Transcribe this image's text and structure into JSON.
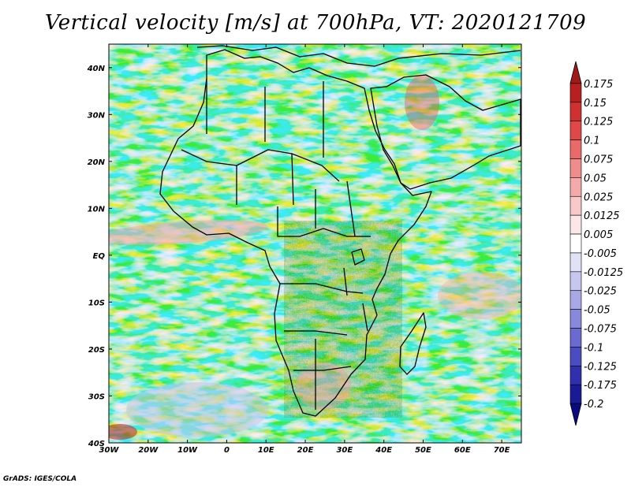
{
  "title": "Vertical velocity [m/s] at 700hPa, VT: 2020121709",
  "credit": "GrADS: IGES/COLA",
  "map": {
    "region": "Africa",
    "field": "vertical velocity",
    "level": "700hPa",
    "lon_range": [
      -30,
      75
    ],
    "lat_range": [
      -40,
      45
    ],
    "lon_ticks": [
      {
        "value": -30,
        "label": "30W"
      },
      {
        "value": -20,
        "label": "20W"
      },
      {
        "value": -10,
        "label": "10W"
      },
      {
        "value": 0,
        "label": "0"
      },
      {
        "value": 10,
        "label": "10E"
      },
      {
        "value": 20,
        "label": "20E"
      },
      {
        "value": 30,
        "label": "30E"
      },
      {
        "value": 40,
        "label": "40E"
      },
      {
        "value": 50,
        "label": "50E"
      },
      {
        "value": 60,
        "label": "60E"
      },
      {
        "value": 70,
        "label": "70E"
      }
    ],
    "lat_ticks": [
      {
        "value": 40,
        "label": "40N"
      },
      {
        "value": 30,
        "label": "30N"
      },
      {
        "value": 20,
        "label": "20N"
      },
      {
        "value": 10,
        "label": "10N"
      },
      {
        "value": 0,
        "label": "EQ"
      },
      {
        "value": -10,
        "label": "10S"
      },
      {
        "value": -20,
        "label": "20S"
      },
      {
        "value": -30,
        "label": "30S"
      },
      {
        "value": -40,
        "label": "40S"
      }
    ]
  },
  "colorbar": {
    "levels": [
      "0.175",
      "0.15",
      "0.125",
      "0.1",
      "0.075",
      "0.05",
      "0.025",
      "0.0125",
      "0.005",
      "-0.005",
      "-0.0125",
      "-0.025",
      "-0.05",
      "-0.075",
      "-0.1",
      "-0.125",
      "-0.175",
      "-0.2"
    ],
    "colors": [
      "#a01a1a",
      "#b82020",
      "#cf3030",
      "#e04848",
      "#ea6a6a",
      "#f08c8c",
      "#f5aaaa",
      "#f9c8c8",
      "#fde6e6",
      "#ffffff",
      "#e2e2f6",
      "#c6c6ef",
      "#a8a8e6",
      "#8888dc",
      "#6a6ad0",
      "#4c4cc2",
      "#3030ae",
      "#1a1a96",
      "#0a0a80"
    ]
  }
}
